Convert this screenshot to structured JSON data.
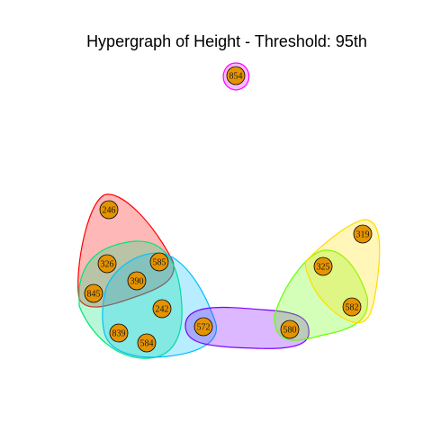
{
  "title": "Hypergraph of Height - Threshold: 95th",
  "node_fill": "#e59400",
  "node_stroke": "#000000",
  "nodes": [
    {
      "id": "n854",
      "label": "854"
    },
    {
      "id": "n246",
      "label": "246"
    },
    {
      "id": "n326",
      "label": "326"
    },
    {
      "id": "n585",
      "label": "585"
    },
    {
      "id": "n390",
      "label": "390"
    },
    {
      "id": "n845",
      "label": "845"
    },
    {
      "id": "n242",
      "label": "242"
    },
    {
      "id": "n839",
      "label": "839"
    },
    {
      "id": "n584",
      "label": "584"
    },
    {
      "id": "n572",
      "label": "572"
    },
    {
      "id": "n580",
      "label": "580"
    },
    {
      "id": "n319",
      "label": "319"
    },
    {
      "id": "n325",
      "label": "325"
    },
    {
      "id": "n582",
      "label": "582"
    }
  ],
  "hyperedges": [
    {
      "id": "e-magenta",
      "members": [
        "854"
      ],
      "color": "#ff00ff"
    },
    {
      "id": "e-red",
      "members": [
        "246",
        "326",
        "585",
        "845"
      ],
      "color": "#ff0000"
    },
    {
      "id": "e-green",
      "members": [
        "326",
        "585",
        "390",
        "845",
        "242",
        "839",
        "584"
      ],
      "color": "#00e676"
    },
    {
      "id": "e-cyan",
      "members": [
        "585",
        "390",
        "242",
        "839",
        "584",
        "572"
      ],
      "color": "#00bfff"
    },
    {
      "id": "e-purple",
      "members": [
        "572",
        "580"
      ],
      "color": "#7f00ff"
    },
    {
      "id": "e-lime",
      "members": [
        "580",
        "325",
        "582"
      ],
      "color": "#66ff00"
    },
    {
      "id": "e-yellow",
      "members": [
        "319",
        "325",
        "582"
      ],
      "color": "#ffdd00"
    }
  ]
}
